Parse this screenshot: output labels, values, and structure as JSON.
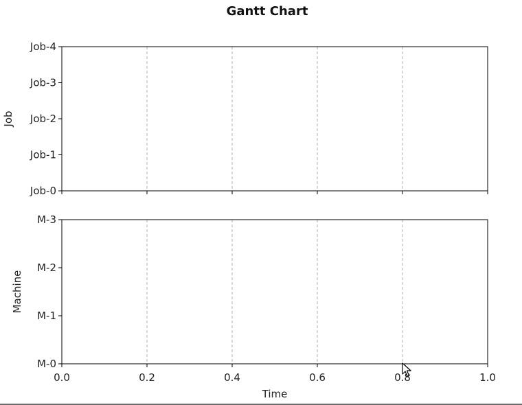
{
  "chart_data": {
    "type": "gantt",
    "title": "Gantt Chart",
    "panels": [
      {
        "ylabel": "Job",
        "yticks": [
          "Job-0",
          "Job-1",
          "Job-2",
          "Job-3",
          "Job-4"
        ],
        "xlim": [
          0.0,
          1.0
        ],
        "xticks": [
          0.0,
          0.2,
          0.4,
          0.6,
          0.8,
          1.0
        ],
        "show_xticklabels": false,
        "grid": "vertical-dashed",
        "tasks": []
      },
      {
        "ylabel": "Machine",
        "yticks": [
          "M-0",
          "M-1",
          "M-2",
          "M-3"
        ],
        "xlim": [
          0.0,
          1.0
        ],
        "xticks": [
          0.0,
          0.2,
          0.4,
          0.6,
          0.8,
          1.0
        ],
        "xticklabels": [
          "0.0",
          "0.2",
          "0.4",
          "0.6",
          "0.8",
          "1.0"
        ],
        "xlabel": "Time",
        "grid": "vertical-dashed",
        "tasks": []
      }
    ],
    "colors": {
      "axis": "#000000",
      "grid": "#b0b0b0",
      "text": "#222222"
    }
  }
}
